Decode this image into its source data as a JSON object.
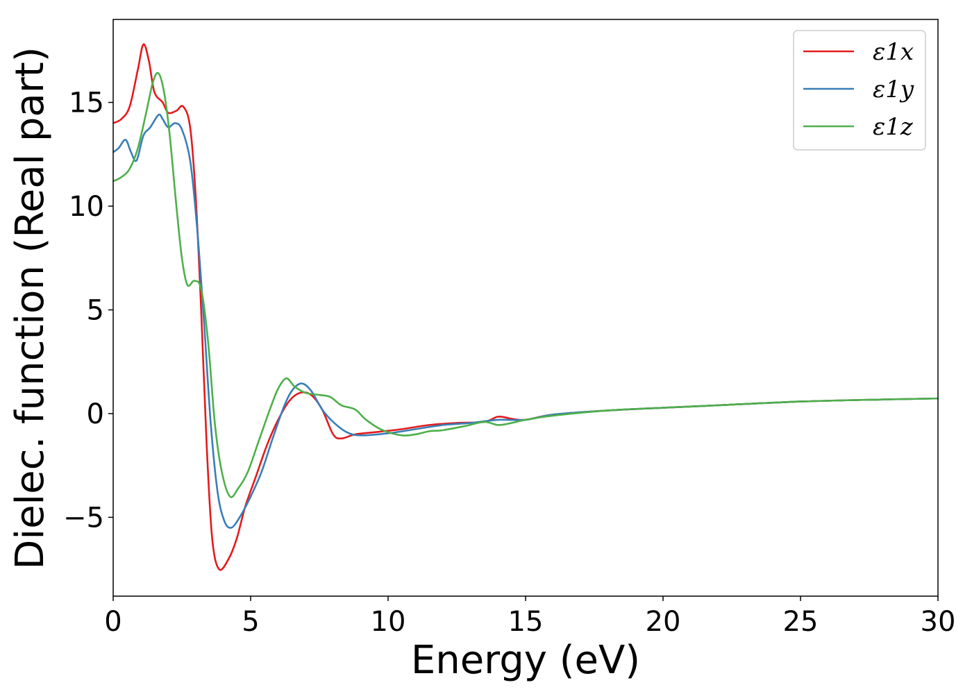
{
  "chart_data": {
    "type": "line",
    "title": "",
    "xlabel": "Energy (eV)",
    "ylabel": "Dielec. function (Real part)",
    "xlim": [
      0,
      30
    ],
    "ylim": [
      -8.8,
      19.0
    ],
    "xticks": [
      0,
      5,
      10,
      15,
      20,
      25,
      30
    ],
    "yticks": [
      -5,
      0,
      5,
      10,
      15
    ],
    "xtick_labels": [
      "0",
      "5",
      "10",
      "15",
      "20",
      "25",
      "30"
    ],
    "ytick_labels": [
      "−5",
      "0",
      "5",
      "10",
      "15"
    ],
    "grid": false,
    "legend": "top-right",
    "series": [
      {
        "name": "ε1x",
        "color": "#e41a1c",
        "points": [
          [
            0,
            14.0
          ],
          [
            0.3,
            14.2
          ],
          [
            0.6,
            14.8
          ],
          [
            0.9,
            16.6
          ],
          [
            1.1,
            17.8
          ],
          [
            1.3,
            17.0
          ],
          [
            1.5,
            15.5
          ],
          [
            1.8,
            15.0
          ],
          [
            2.0,
            14.5
          ],
          [
            2.3,
            14.6
          ],
          [
            2.55,
            14.8
          ],
          [
            2.8,
            13.8
          ],
          [
            3.0,
            10.5
          ],
          [
            3.2,
            5.0
          ],
          [
            3.4,
            -1.5
          ],
          [
            3.6,
            -6.0
          ],
          [
            3.85,
            -7.5
          ],
          [
            4.2,
            -7.0
          ],
          [
            4.5,
            -6.0
          ],
          [
            4.8,
            -4.5
          ],
          [
            5.2,
            -3.0
          ],
          [
            5.6,
            -1.5
          ],
          [
            6.0,
            -0.3
          ],
          [
            6.4,
            0.6
          ],
          [
            6.8,
            1.0
          ],
          [
            7.2,
            0.9
          ],
          [
            7.6,
            0.2
          ],
          [
            8.0,
            -1.0
          ],
          [
            8.3,
            -1.2
          ],
          [
            8.8,
            -1.0
          ],
          [
            9.5,
            -0.9
          ],
          [
            10.5,
            -0.75
          ],
          [
            11.5,
            -0.55
          ],
          [
            12.5,
            -0.45
          ],
          [
            13.5,
            -0.4
          ],
          [
            14.0,
            -0.15
          ],
          [
            14.5,
            -0.25
          ],
          [
            15.0,
            -0.3
          ],
          [
            16.0,
            -0.05
          ],
          [
            18.0,
            0.15
          ],
          [
            20.0,
            0.28
          ],
          [
            22.0,
            0.4
          ],
          [
            25.0,
            0.58
          ],
          [
            28.0,
            0.68
          ],
          [
            30.0,
            0.73
          ]
        ]
      },
      {
        "name": "ε1y",
        "color": "#377eb8",
        "points": [
          [
            0,
            12.6
          ],
          [
            0.2,
            12.8
          ],
          [
            0.45,
            13.2
          ],
          [
            0.65,
            12.6
          ],
          [
            0.85,
            12.2
          ],
          [
            1.1,
            13.4
          ],
          [
            1.35,
            13.8
          ],
          [
            1.65,
            14.4
          ],
          [
            1.8,
            14.2
          ],
          [
            2.0,
            13.8
          ],
          [
            2.25,
            14.0
          ],
          [
            2.5,
            13.7
          ],
          [
            2.8,
            12.2
          ],
          [
            3.05,
            9.0
          ],
          [
            3.3,
            4.5
          ],
          [
            3.55,
            -0.5
          ],
          [
            3.8,
            -3.8
          ],
          [
            4.05,
            -5.2
          ],
          [
            4.3,
            -5.5
          ],
          [
            4.6,
            -5.0
          ],
          [
            5.0,
            -4.0
          ],
          [
            5.4,
            -2.8
          ],
          [
            5.8,
            -1.2
          ],
          [
            6.2,
            0.3
          ],
          [
            6.5,
            1.1
          ],
          [
            6.85,
            1.45
          ],
          [
            7.2,
            1.1
          ],
          [
            7.6,
            0.2
          ],
          [
            8.0,
            -0.4
          ],
          [
            8.5,
            -0.9
          ],
          [
            9.0,
            -1.05
          ],
          [
            10.0,
            -0.95
          ],
          [
            11.0,
            -0.75
          ],
          [
            12.0,
            -0.55
          ],
          [
            13.0,
            -0.45
          ],
          [
            14.0,
            -0.3
          ],
          [
            15.0,
            -0.3
          ],
          [
            16.0,
            -0.05
          ],
          [
            18.0,
            0.15
          ],
          [
            20.0,
            0.28
          ],
          [
            22.0,
            0.4
          ],
          [
            25.0,
            0.58
          ],
          [
            28.0,
            0.68
          ],
          [
            30.0,
            0.73
          ]
        ]
      },
      {
        "name": "ε1z",
        "color": "#4daf4a",
        "points": [
          [
            0,
            11.2
          ],
          [
            0.3,
            11.4
          ],
          [
            0.6,
            11.8
          ],
          [
            0.9,
            12.8
          ],
          [
            1.2,
            14.5
          ],
          [
            1.45,
            16.0
          ],
          [
            1.65,
            16.4
          ],
          [
            1.85,
            15.5
          ],
          [
            2.05,
            13.5
          ],
          [
            2.3,
            10.0
          ],
          [
            2.5,
            7.5
          ],
          [
            2.7,
            6.2
          ],
          [
            2.95,
            6.4
          ],
          [
            3.2,
            6.0
          ],
          [
            3.45,
            3.5
          ],
          [
            3.7,
            -0.5
          ],
          [
            3.95,
            -2.8
          ],
          [
            4.25,
            -4.0
          ],
          [
            4.55,
            -3.6
          ],
          [
            4.9,
            -2.8
          ],
          [
            5.3,
            -1.3
          ],
          [
            5.7,
            0.2
          ],
          [
            6.0,
            1.2
          ],
          [
            6.3,
            1.7
          ],
          [
            6.6,
            1.3
          ],
          [
            7.0,
            1.0
          ],
          [
            7.5,
            0.9
          ],
          [
            7.9,
            0.8
          ],
          [
            8.3,
            0.4
          ],
          [
            8.8,
            0.2
          ],
          [
            9.2,
            -0.3
          ],
          [
            9.8,
            -0.8
          ],
          [
            10.5,
            -1.05
          ],
          [
            11.0,
            -1.0
          ],
          [
            11.5,
            -0.85
          ],
          [
            12.0,
            -0.8
          ],
          [
            12.8,
            -0.6
          ],
          [
            13.5,
            -0.4
          ],
          [
            14.0,
            -0.55
          ],
          [
            14.5,
            -0.45
          ],
          [
            15.0,
            -0.3
          ],
          [
            16.0,
            -0.1
          ],
          [
            18.0,
            0.15
          ],
          [
            20.0,
            0.28
          ],
          [
            22.0,
            0.4
          ],
          [
            25.0,
            0.58
          ],
          [
            28.0,
            0.68
          ],
          [
            30.0,
            0.73
          ]
        ]
      }
    ]
  }
}
